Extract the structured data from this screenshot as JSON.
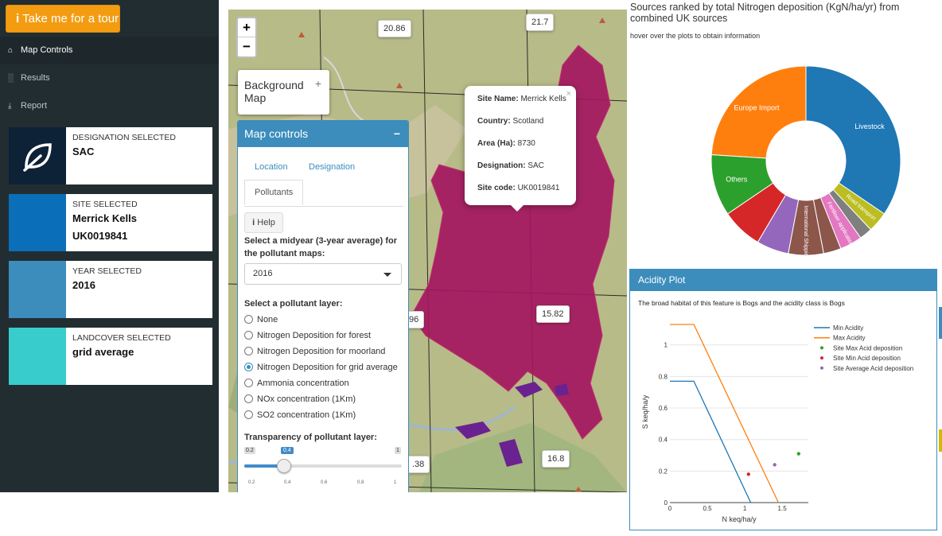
{
  "sidebar": {
    "tour_label": "Take me for a tour",
    "nav": [
      {
        "label": "Map Controls",
        "icon": "home-icon"
      },
      {
        "label": "Results",
        "icon": "bar-chart-icon"
      },
      {
        "label": "Report",
        "icon": "download-icon"
      }
    ],
    "cards": [
      {
        "label": "DESIGNATION SELECTED",
        "value": "SAC",
        "color": "#0d2137"
      },
      {
        "label": "SITE SELECTED",
        "value": "Merrick Kells",
        "value2": "UK0019841",
        "color": "#0a6fb8"
      },
      {
        "label": "YEAR SELECTED",
        "value": "2016",
        "color": "#3c8dbc"
      },
      {
        "label": "LANDCOVER SELECTED",
        "value": "grid average",
        "color": "#39cccc"
      }
    ]
  },
  "map": {
    "zoom_in": "+",
    "zoom_out": "−",
    "background_map": "Background Map",
    "background_map_plus": "+",
    "value_labels": [
      "20.86",
      "21.7",
      "15.82",
      "16.8",
      "96",
      ".38"
    ],
    "popup": {
      "close": "×",
      "rows": [
        {
          "key": "Site Name:",
          "value": "Merrick Kells"
        },
        {
          "key": "Country:",
          "value": "Scotland"
        },
        {
          "key": "Area (Ha):",
          "value": "8730"
        },
        {
          "key": "Designation:",
          "value": "SAC"
        },
        {
          "key": "Site code:",
          "value": "UK0019841"
        }
      ]
    }
  },
  "controls": {
    "title": "Map controls",
    "collapse": "−",
    "tabs": [
      "Location",
      "Designation",
      "Pollutants"
    ],
    "help": "Help",
    "year_label": "Select a midyear (3-year average) for the pollutant maps:",
    "year_value": "2016",
    "layer_label": "Select a pollutant layer:",
    "layers": [
      "None",
      "Nitrogen Deposition for forest",
      "Nitrogen Deposition for moorland",
      "Nitrogen Deposition for grid average",
      "Ammonia concentration",
      "NOx concentration (1Km)",
      "SO2 concentration (1Km)"
    ],
    "selected_layer": 3,
    "transparency_label": "Transparency of pollutant layer:",
    "slider": {
      "min": "0.2",
      "max": "1",
      "value": "0.4",
      "value_num": 0.4,
      "ticks": [
        "0.2",
        "0.4",
        "0.6",
        "0.8",
        "1"
      ]
    }
  },
  "pie": {
    "title": "Sources ranked by total Nitrogen deposition (KgN/ha/yr) from combined UK sources",
    "hint": "hover over the plots to obtain information",
    "labels": [
      "Livestock",
      "Europe Import",
      "Others",
      "Road transport",
      "Fertiliser application",
      "International Shipping"
    ]
  },
  "acidity": {
    "title": "Acidity Plot",
    "note": "The broad habitat of this feature is Bogs and the acidity class is Bogs",
    "legend": [
      "Min Acidity",
      "Max Acidity",
      "Site Max Acid deposition",
      "Site Min Acid deposition",
      "Site Average Acid deposition"
    ],
    "colors": {
      "min": "#1f77b4",
      "max": "#ff7f0e",
      "site_max": "#2ca02c",
      "site_min": "#d62728",
      "site_avg": "#9467bd"
    },
    "xlabel": "N keq/ha/y",
    "ylabel": "S keq/ha/y",
    "xticks": [
      "0",
      "0.5",
      "1",
      "1.5"
    ],
    "yticks": [
      "0",
      "0.2",
      "0.4",
      "0.6",
      "0.8",
      "1"
    ]
  },
  "chart_data": [
    {
      "type": "pie",
      "title": "Sources ranked by total Nitrogen deposition (KgN/ha/yr) from combined UK sources",
      "categories": [
        "Livestock",
        "Road transport",
        "",
        "Fertiliser application",
        "",
        "International Shipping",
        "",
        "",
        "Others",
        "Europe Import"
      ],
      "values": [
        34.5,
        3.5,
        2.2,
        3.8,
        3.0,
        6.0,
        5.5,
        7.0,
        10.5,
        24.0
      ],
      "colors": [
        "#1f77b4",
        "#bcbd22",
        "#7f7f7f",
        "#e377c2",
        "#8c564b",
        "#8c564b",
        "#9467bd",
        "#d62728",
        "#2ca02c",
        "#ff7f0e"
      ]
    },
    {
      "type": "line",
      "title": "",
      "xlabel": "N keq/ha/y",
      "ylabel": "S keq/ha/y",
      "xlim": [
        0,
        1.85
      ],
      "ylim": [
        0,
        1.15
      ],
      "series": [
        {
          "name": "Min Acidity",
          "x": [
            0,
            0.32,
            1.08
          ],
          "y": [
            0.77,
            0.77,
            0
          ]
        },
        {
          "name": "Max Acidity",
          "x": [
            0,
            0.32,
            1.45
          ],
          "y": [
            1.13,
            1.13,
            0
          ]
        },
        {
          "name": "Site Max Acid deposition",
          "x": [
            1.72
          ],
          "y": [
            0.31
          ]
        },
        {
          "name": "Site Min Acid deposition",
          "x": [
            1.05
          ],
          "y": [
            0.18
          ]
        },
        {
          "name": "Site Average Acid deposition",
          "x": [
            1.4
          ],
          "y": [
            0.24
          ]
        }
      ]
    }
  ]
}
